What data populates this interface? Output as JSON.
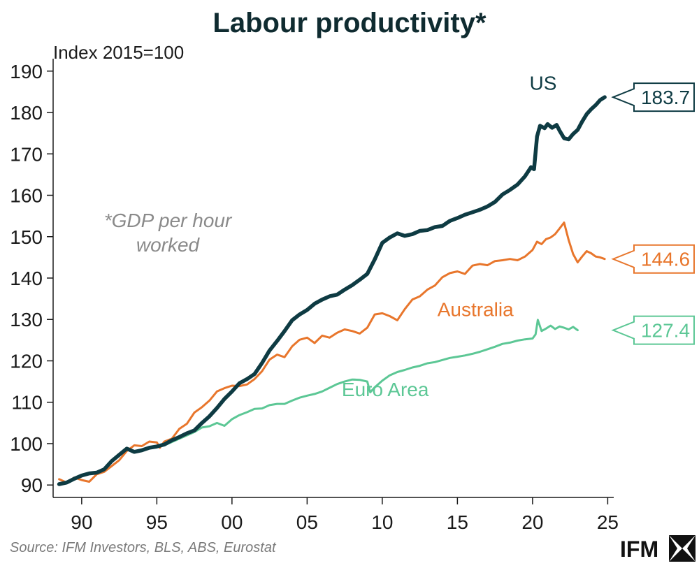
{
  "chart_data": {
    "type": "line",
    "title": "Labour productivity*",
    "ylabel": "Index 2015=100",
    "xlabel": "",
    "note_lines": [
      "*GDP per hour",
      "worked"
    ],
    "source": "Source: IFM Investors, BLS, ABS, Eurostat",
    "logo_text": "IFM",
    "xlim": [
      1988.1,
      2025.4
    ],
    "ylim": [
      87,
      193
    ],
    "x_ticks": [
      1990,
      1995,
      2000,
      2005,
      2010,
      2015,
      2020,
      2025
    ],
    "x_tick_labels": [
      "90",
      "95",
      "00",
      "05",
      "10",
      "15",
      "20",
      "25"
    ],
    "y_ticks": [
      90,
      100,
      110,
      120,
      130,
      140,
      150,
      160,
      170,
      180,
      190
    ],
    "y_tick_labels": [
      "90",
      "100",
      "110",
      "120",
      "130",
      "140",
      "150",
      "160",
      "170",
      "180",
      "190"
    ],
    "series": [
      {
        "name": "US",
        "label": "US",
        "color": "#0e3b43",
        "label_pos": [
          2020.7,
          185.5
        ],
        "end_label": "183.7",
        "end_y": 183.7,
        "points": [
          [
            1988.5,
            90.2
          ],
          [
            1989,
            90.6
          ],
          [
            1989.5,
            91.5
          ],
          [
            1990,
            92.3
          ],
          [
            1990.5,
            92.8
          ],
          [
            1991,
            93.0
          ],
          [
            1991.5,
            93.8
          ],
          [
            1992,
            95.8
          ],
          [
            1992.5,
            97.3
          ],
          [
            1993,
            98.8
          ],
          [
            1993.5,
            98.0
          ],
          [
            1994,
            98.4
          ],
          [
            1994.5,
            99.0
          ],
          [
            1995,
            99.3
          ],
          [
            1995.5,
            99.8
          ],
          [
            1996,
            100.8
          ],
          [
            1996.5,
            101.6
          ],
          [
            1997,
            102.5
          ],
          [
            1997.5,
            103.2
          ],
          [
            1998,
            105.0
          ],
          [
            1998.5,
            106.6
          ],
          [
            1999,
            108.6
          ],
          [
            1999.5,
            110.8
          ],
          [
            2000,
            112.6
          ],
          [
            2000.5,
            114.6
          ],
          [
            2001,
            115.6
          ],
          [
            2001.5,
            116.8
          ],
          [
            2002,
            119.5
          ],
          [
            2002.5,
            122.5
          ],
          [
            2003,
            124.8
          ],
          [
            2003.5,
            127.2
          ],
          [
            2004,
            129.8
          ],
          [
            2004.5,
            131.2
          ],
          [
            2005,
            132.3
          ],
          [
            2005.5,
            133.8
          ],
          [
            2006,
            134.8
          ],
          [
            2006.5,
            135.6
          ],
          [
            2007,
            136.0
          ],
          [
            2007.5,
            137.2
          ],
          [
            2008,
            138.3
          ],
          [
            2008.5,
            139.6
          ],
          [
            2009,
            141.0
          ],
          [
            2009.5,
            144.5
          ],
          [
            2010,
            148.5
          ],
          [
            2010.5,
            149.8
          ],
          [
            2011,
            150.8
          ],
          [
            2011.5,
            150.2
          ],
          [
            2012,
            150.6
          ],
          [
            2012.5,
            151.4
          ],
          [
            2013,
            151.6
          ],
          [
            2013.5,
            152.3
          ],
          [
            2014,
            152.6
          ],
          [
            2014.5,
            153.8
          ],
          [
            2015,
            154.5
          ],
          [
            2015.5,
            155.3
          ],
          [
            2016,
            155.9
          ],
          [
            2016.5,
            156.5
          ],
          [
            2017,
            157.3
          ],
          [
            2017.5,
            158.4
          ],
          [
            2018,
            160.2
          ],
          [
            2018.5,
            161.3
          ],
          [
            2019,
            162.6
          ],
          [
            2019.5,
            164.6
          ],
          [
            2019.9,
            166.8
          ],
          [
            2020.1,
            166.3
          ],
          [
            2020.3,
            174.2
          ],
          [
            2020.5,
            176.8
          ],
          [
            2020.8,
            176.2
          ],
          [
            2021,
            177.2
          ],
          [
            2021.3,
            176.3
          ],
          [
            2021.6,
            177.0
          ],
          [
            2021.8,
            175.6
          ],
          [
            2022.1,
            173.8
          ],
          [
            2022.4,
            173.5
          ],
          [
            2022.7,
            174.8
          ],
          [
            2023,
            175.8
          ],
          [
            2023.3,
            177.8
          ],
          [
            2023.6,
            179.6
          ],
          [
            2023.9,
            180.8
          ],
          [
            2024.2,
            181.8
          ],
          [
            2024.5,
            183.0
          ],
          [
            2024.8,
            183.7
          ]
        ]
      },
      {
        "name": "Australia",
        "label": "Australia",
        "color": "#e8762c",
        "label_pos": [
          2016.2,
          130.8
        ],
        "end_label": "144.6",
        "end_y": 144.6,
        "points": [
          [
            1988.5,
            91.4
          ],
          [
            1989,
            90.6
          ],
          [
            1989.5,
            91.8
          ],
          [
            1990,
            91.2
          ],
          [
            1990.5,
            90.8
          ],
          [
            1991,
            92.6
          ],
          [
            1991.5,
            93.2
          ],
          [
            1992,
            94.6
          ],
          [
            1992.5,
            96.0
          ],
          [
            1993,
            98.2
          ],
          [
            1993.5,
            99.6
          ],
          [
            1994,
            99.4
          ],
          [
            1994.5,
            100.5
          ],
          [
            1995,
            100.3
          ],
          [
            1995.2,
            99.0
          ],
          [
            1995.5,
            100.5
          ],
          [
            1996,
            101.2
          ],
          [
            1996.5,
            103.6
          ],
          [
            1997,
            104.8
          ],
          [
            1997.5,
            107.5
          ],
          [
            1998,
            108.8
          ],
          [
            1998.5,
            110.4
          ],
          [
            1999,
            112.6
          ],
          [
            1999.5,
            113.4
          ],
          [
            2000,
            114.0
          ],
          [
            2000.5,
            113.9
          ],
          [
            2001,
            114.3
          ],
          [
            2001.5,
            115.6
          ],
          [
            2002,
            117.5
          ],
          [
            2002.5,
            120.3
          ],
          [
            2003,
            121.5
          ],
          [
            2003.5,
            120.9
          ],
          [
            2004,
            123.5
          ],
          [
            2004.5,
            125.1
          ],
          [
            2005,
            125.6
          ],
          [
            2005.5,
            124.3
          ],
          [
            2006,
            126.1
          ],
          [
            2006.5,
            125.6
          ],
          [
            2007,
            126.8
          ],
          [
            2007.5,
            127.6
          ],
          [
            2008,
            127.2
          ],
          [
            2008.5,
            126.6
          ],
          [
            2009,
            128.0
          ],
          [
            2009.5,
            131.2
          ],
          [
            2010,
            131.5
          ],
          [
            2010.5,
            130.8
          ],
          [
            2011,
            129.8
          ],
          [
            2011.5,
            132.5
          ],
          [
            2012,
            134.8
          ],
          [
            2012.5,
            135.6
          ],
          [
            2013,
            137.2
          ],
          [
            2013.5,
            138.2
          ],
          [
            2014,
            140.2
          ],
          [
            2014.5,
            141.2
          ],
          [
            2015,
            141.6
          ],
          [
            2015.5,
            141.0
          ],
          [
            2016,
            143.0
          ],
          [
            2016.5,
            143.4
          ],
          [
            2017,
            143.1
          ],
          [
            2017.5,
            144.1
          ],
          [
            2018,
            144.3
          ],
          [
            2018.5,
            144.6
          ],
          [
            2019,
            144.3
          ],
          [
            2019.5,
            145.2
          ],
          [
            2020,
            146.8
          ],
          [
            2020.3,
            148.8
          ],
          [
            2020.6,
            148.2
          ],
          [
            2020.9,
            149.4
          ],
          [
            2021.2,
            149.8
          ],
          [
            2021.5,
            150.6
          ],
          [
            2021.8,
            152.0
          ],
          [
            2022.1,
            153.4
          ],
          [
            2022.4,
            149.2
          ],
          [
            2022.7,
            145.8
          ],
          [
            2023,
            143.8
          ],
          [
            2023.3,
            145.2
          ],
          [
            2023.6,
            146.5
          ],
          [
            2023.9,
            146.0
          ],
          [
            2024.2,
            145.2
          ],
          [
            2024.5,
            145.0
          ],
          [
            2024.8,
            144.6
          ]
        ]
      },
      {
        "name": "Euro Area",
        "label": "Euro Area",
        "color": "#5cc795",
        "label_pos": [
          2010.2,
          111.5
        ],
        "end_label": "127.4",
        "end_y": 127.4,
        "points": [
          [
            1995.5,
            99.6
          ],
          [
            1996,
            100.4
          ],
          [
            1996.5,
            101.2
          ],
          [
            1997,
            102.0
          ],
          [
            1997.5,
            102.8
          ],
          [
            1998,
            103.9
          ],
          [
            1998.5,
            104.2
          ],
          [
            1999,
            105.0
          ],
          [
            1999.5,
            104.3
          ],
          [
            2000,
            105.9
          ],
          [
            2000.5,
            106.9
          ],
          [
            2001,
            107.6
          ],
          [
            2001.5,
            108.4
          ],
          [
            2002,
            108.5
          ],
          [
            2002.5,
            109.3
          ],
          [
            2003,
            109.6
          ],
          [
            2003.5,
            109.6
          ],
          [
            2004,
            110.4
          ],
          [
            2004.5,
            111.1
          ],
          [
            2005,
            111.6
          ],
          [
            2005.5,
            112.0
          ],
          [
            2006,
            112.6
          ],
          [
            2006.5,
            113.5
          ],
          [
            2007,
            114.4
          ],
          [
            2007.5,
            115.0
          ],
          [
            2008,
            115.5
          ],
          [
            2008.5,
            115.4
          ],
          [
            2009,
            115.0
          ],
          [
            2009.2,
            112.4
          ],
          [
            2009.5,
            113.6
          ],
          [
            2010,
            115.2
          ],
          [
            2010.5,
            116.5
          ],
          [
            2011,
            117.3
          ],
          [
            2011.5,
            117.8
          ],
          [
            2012,
            118.4
          ],
          [
            2012.5,
            118.8
          ],
          [
            2013,
            119.4
          ],
          [
            2013.5,
            119.7
          ],
          [
            2014,
            120.2
          ],
          [
            2014.5,
            120.7
          ],
          [
            2015,
            121.0
          ],
          [
            2015.5,
            121.3
          ],
          [
            2016,
            121.7
          ],
          [
            2016.5,
            122.2
          ],
          [
            2017,
            122.8
          ],
          [
            2017.5,
            123.4
          ],
          [
            2018,
            124.1
          ],
          [
            2018.5,
            124.4
          ],
          [
            2019,
            124.9
          ],
          [
            2019.5,
            125.2
          ],
          [
            2020,
            125.4
          ],
          [
            2020.2,
            126.4
          ],
          [
            2020.35,
            129.9
          ],
          [
            2020.6,
            127.2
          ],
          [
            2020.9,
            127.8
          ],
          [
            2021.2,
            128.5
          ],
          [
            2021.5,
            127.7
          ],
          [
            2021.8,
            128.3
          ],
          [
            2022.1,
            128.0
          ],
          [
            2022.4,
            127.6
          ],
          [
            2022.7,
            128.2
          ],
          [
            2023,
            127.4
          ]
        ]
      }
    ]
  }
}
